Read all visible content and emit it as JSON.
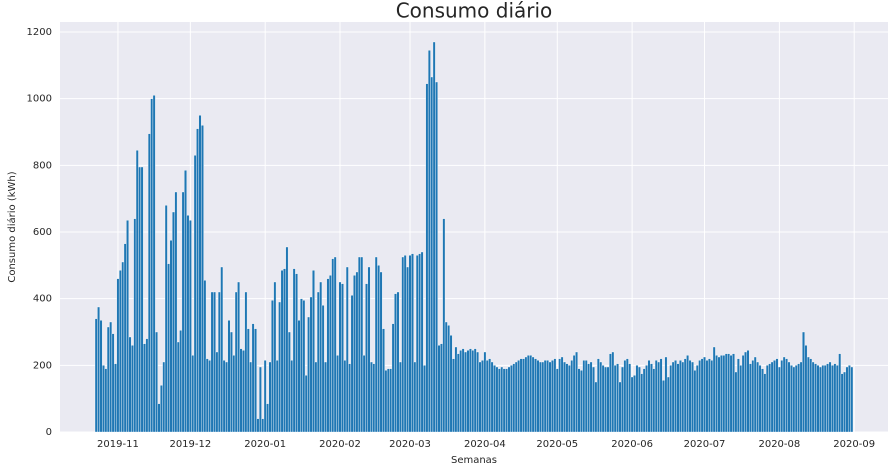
{
  "chart_data": {
    "type": "bar",
    "title": "Consumo diário",
    "xlabel": "Semanas",
    "ylabel": "Consumo diário (kWh)",
    "color": "#1f77b4",
    "grid": true,
    "values": [
      340,
      375,
      335,
      200,
      190,
      315,
      330,
      295,
      205,
      460,
      485,
      510,
      565,
      635,
      285,
      260,
      640,
      845,
      795,
      795,
      265,
      280,
      895,
      1000,
      1010,
      300,
      85,
      140,
      210,
      680,
      505,
      575,
      660,
      720,
      270,
      305,
      720,
      785,
      650,
      635,
      230,
      830,
      910,
      950,
      920,
      455,
      220,
      215,
      420,
      420,
      240,
      420,
      495,
      215,
      210,
      335,
      300,
      230,
      420,
      450,
      250,
      245,
      420,
      310,
      210,
      325,
      310,
      40,
      195,
      40,
      215,
      85,
      210,
      395,
      450,
      215,
      390,
      485,
      490,
      555,
      300,
      215,
      490,
      475,
      335,
      400,
      395,
      170,
      345,
      405,
      485,
      210,
      420,
      450,
      380,
      210,
      460,
      470,
      520,
      525,
      230,
      450,
      445,
      215,
      495,
      205,
      410,
      470,
      480,
      525,
      525,
      230,
      445,
      495,
      210,
      205,
      525,
      500,
      480,
      310,
      185,
      190,
      190,
      325,
      415,
      420,
      210,
      525,
      530,
      495,
      530,
      535,
      210,
      530,
      535,
      540,
      200,
      1045,
      1145,
      1065,
      1170,
      1050,
      260,
      265,
      640,
      330,
      320,
      290,
      220,
      255,
      235,
      245,
      250,
      240,
      245,
      250,
      245,
      250,
      240,
      210,
      215,
      240,
      215,
      220,
      210,
      200,
      195,
      190,
      195,
      190,
      190,
      195,
      200,
      205,
      210,
      215,
      220,
      220,
      225,
      230,
      230,
      225,
      220,
      215,
      210,
      210,
      215,
      215,
      210,
      215,
      220,
      190,
      220,
      225,
      210,
      205,
      200,
      215,
      230,
      240,
      190,
      185,
      215,
      215,
      205,
      210,
      195,
      150,
      220,
      210,
      200,
      195,
      195,
      235,
      240,
      200,
      205,
      150,
      195,
      215,
      220,
      205,
      165,
      170,
      200,
      195,
      175,
      190,
      200,
      215,
      205,
      190,
      215,
      210,
      220,
      155,
      225,
      165,
      200,
      210,
      215,
      205,
      215,
      210,
      220,
      230,
      215,
      210,
      185,
      200,
      215,
      220,
      225,
      215,
      220,
      215,
      255,
      230,
      225,
      230,
      230,
      235,
      235,
      230,
      235,
      180,
      220,
      200,
      230,
      240,
      245,
      205,
      215,
      225,
      210,
      200,
      190,
      175,
      200,
      205,
      210,
      215,
      220,
      195,
      215,
      225,
      220,
      210,
      200,
      195,
      200,
      205,
      210,
      300,
      260,
      225,
      220,
      210,
      205,
      200,
      195,
      200,
      200,
      205,
      210,
      200,
      205,
      200,
      235,
      175,
      180,
      195,
      200,
      195
    ],
    "xlim": [
      -15,
      328
    ],
    "xticks": [
      {
        "value": 9,
        "label": "2019-11"
      },
      {
        "value": 39,
        "label": "2019-12"
      },
      {
        "value": 70,
        "label": "2020-01"
      },
      {
        "value": 101,
        "label": "2020-02"
      },
      {
        "value": 130,
        "label": "2020-03"
      },
      {
        "value": 161,
        "label": "2020-04"
      },
      {
        "value": 191,
        "label": "2020-05"
      },
      {
        "value": 222,
        "label": "2020-06"
      },
      {
        "value": 252,
        "label": "2020-07"
      },
      {
        "value": 283,
        "label": "2020-08"
      },
      {
        "value": 314,
        "label": "2020-09"
      }
    ],
    "ylim": [
      0,
      1230
    ],
    "yticks": [
      0,
      200,
      400,
      600,
      800,
      1000,
      1200
    ]
  }
}
